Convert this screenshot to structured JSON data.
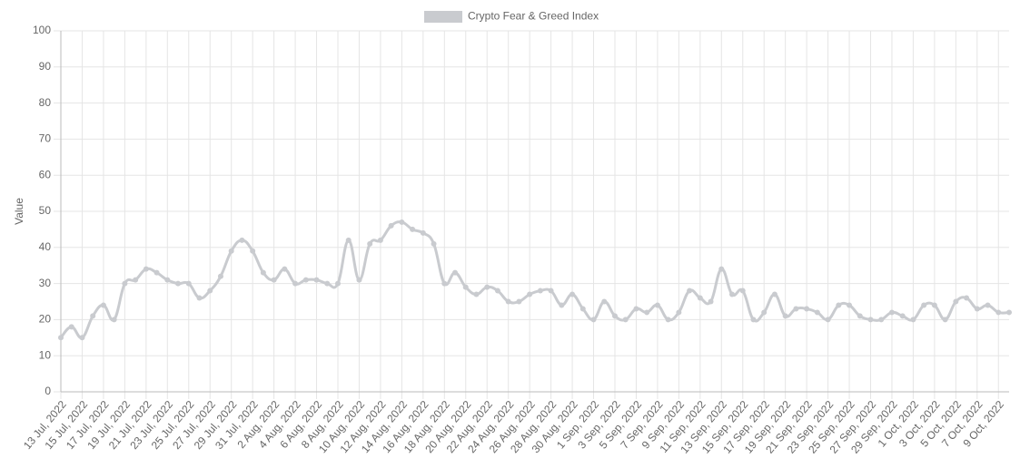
{
  "chart_data": {
    "type": "line",
    "legend_position": "top",
    "y_label": "Value",
    "categories": [
      "13 Jul, 2022",
      null,
      "15 Jul, 2022",
      null,
      "17 Jul, 2022",
      null,
      "19 Jul, 2022",
      null,
      "21 Jul, 2022",
      null,
      "23 Jul, 2022",
      null,
      "25 Jul, 2022",
      null,
      "27 Jul, 2022",
      null,
      "29 Jul, 2022",
      null,
      "31 Jul, 2022",
      null,
      "2 Aug, 2022",
      null,
      "4 Aug, 2022",
      null,
      "6 Aug, 2022",
      null,
      "8 Aug, 2022",
      null,
      "10 Aug, 2022",
      null,
      "12 Aug, 2022",
      null,
      "14 Aug, 2022",
      null,
      "16 Aug, 2022",
      null,
      "18 Aug, 2022",
      null,
      "20 Aug, 2022",
      null,
      "22 Aug, 2022",
      null,
      "24 Aug, 2022",
      null,
      "26 Aug, 2022",
      null,
      "28 Aug, 2022",
      null,
      "30 Aug, 2022",
      null,
      "1 Sep, 2022",
      null,
      "3 Sep, 2022",
      null,
      "5 Sep, 2022",
      null,
      "7 Sep, 2022",
      null,
      "9 Sep, 2022",
      null,
      "11 Sep, 2022",
      null,
      "13 Sep, 2022",
      null,
      "15 Sep, 2022",
      null,
      "17 Sep, 2022",
      null,
      "19 Sep, 2022",
      null,
      "21 Sep, 2022",
      null,
      "23 Sep, 2022",
      null,
      "25 Sep, 2022",
      null,
      "27 Sep, 2022",
      null,
      "29 Sep, 2022",
      null,
      "1 Oct, 2022",
      null,
      "3 Oct, 2022",
      null,
      "5 Oct, 2022",
      null,
      "7 Oct, 2022",
      null,
      "9 Oct, 2022",
      null
    ],
    "series": [
      {
        "name": "Crypto Fear & Greed Index",
        "color": "#c9cbcf",
        "values": [
          15,
          18,
          15,
          21,
          24,
          20,
          30,
          31,
          34,
          33,
          31,
          30,
          30,
          26,
          28,
          32,
          39,
          42,
          39,
          33,
          31,
          34,
          30,
          31,
          31,
          30,
          30,
          42,
          31,
          41,
          42,
          46,
          47,
          45,
          44,
          41,
          30,
          33,
          29,
          27,
          29,
          28,
          25,
          25,
          27,
          28,
          28,
          24,
          27,
          23,
          20,
          25,
          21,
          20,
          23,
          22,
          24,
          20,
          22,
          28,
          26,
          25,
          34,
          27,
          28,
          20,
          22,
          27,
          21,
          23,
          23,
          22,
          20,
          24,
          24,
          21,
          20,
          20,
          22,
          21,
          20,
          24,
          24,
          20,
          25,
          26,
          23,
          24,
          22,
          22
        ]
      }
    ],
    "ylim": [
      0,
      100
    ],
    "yticks": [
      0,
      10,
      20,
      30,
      40,
      50,
      60,
      70,
      80,
      90,
      100
    ],
    "grid": true
  }
}
